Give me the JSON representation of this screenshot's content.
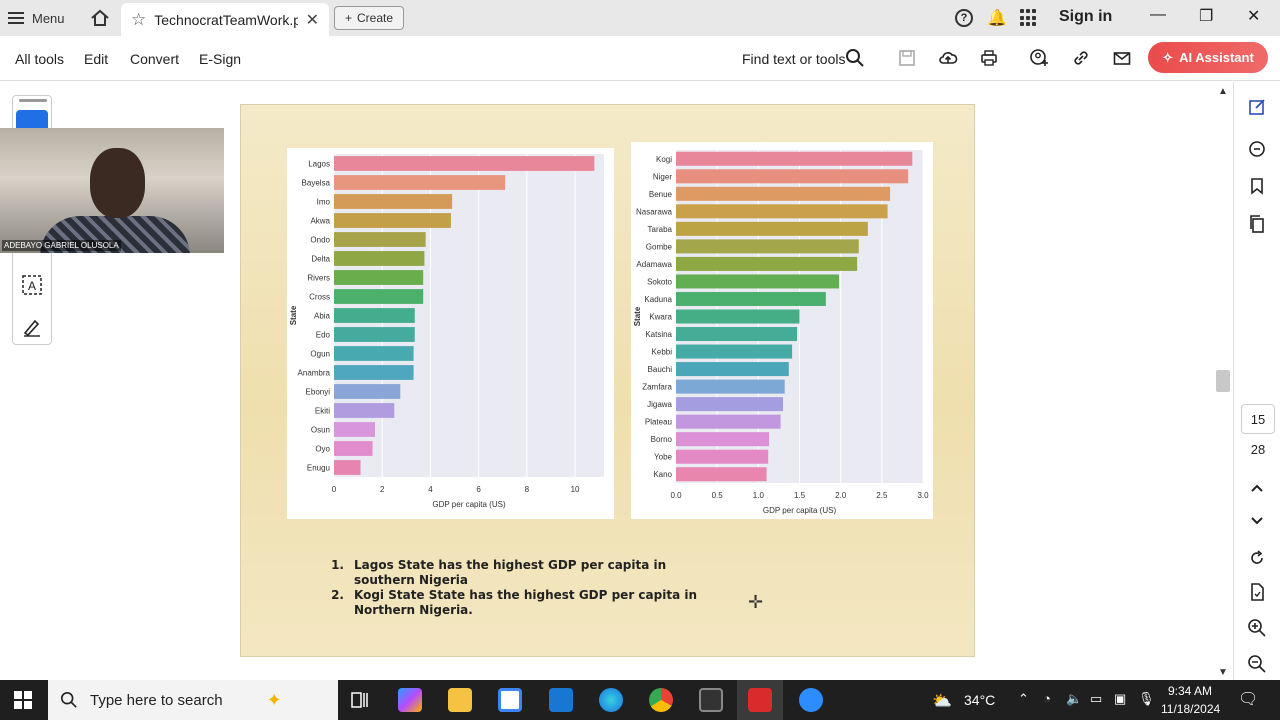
{
  "titlebar": {
    "menu_label": "Menu",
    "tab_title": "TechnocratTeamWork.p...",
    "create_label": "Create",
    "help_glyph": "?",
    "signin_label": "Sign in"
  },
  "toolbar": {
    "all_tools": "All tools",
    "edit": "Edit",
    "convert": "Convert",
    "esign": "E-Sign",
    "find_text": "Find text or tools",
    "ai_assistant": "AI Assistant"
  },
  "webcam": {
    "participant_name": "ADEBAYO GABRIEL OLUSOLA"
  },
  "document": {
    "notes": [
      {
        "num": "1.",
        "line1": "Lagos State has the highest GDP per capita in",
        "line2": "southern Nigeria"
      },
      {
        "num": "2.",
        "line1": "Kogi State State has the highest GDP per capita in",
        "line2": "Northern Nigeria."
      }
    ]
  },
  "page_nav": {
    "current": "15",
    "total": "28"
  },
  "taskbar": {
    "search_placeholder": "Type here to search",
    "weather": "34°C",
    "time": "9:34 AM",
    "date": "11/18/2024"
  },
  "colors": {
    "accent_blue": "#1f6fe5",
    "ai_red": "#ea4b4b",
    "page_bg": "#f0e2b6"
  },
  "chart_data": [
    {
      "type": "bar",
      "orientation": "horizontal",
      "categories": [
        "Lagos",
        "Bayelsa",
        "Imo",
        "Akwa",
        "Ondo",
        "Delta",
        "Rivers",
        "Cross",
        "Abia",
        "Edo",
        "Ogun",
        "Anambra",
        "Ebonyi",
        "Ekiti",
        "Osun",
        "Oyo",
        "Enugu"
      ],
      "values": [
        10.8,
        7.1,
        4.9,
        4.85,
        3.8,
        3.75,
        3.7,
        3.7,
        3.35,
        3.35,
        3.3,
        3.3,
        2.75,
        2.5,
        1.7,
        1.6,
        1.1
      ],
      "colors": [
        "#e8879a",
        "#e8967e",
        "#d49a57",
        "#c3a047",
        "#a7a34a",
        "#8fa744",
        "#6aad4d",
        "#4db06a",
        "#44ad8d",
        "#45ab9f",
        "#48aab0",
        "#4ea6bf",
        "#8aa6d8",
        "#b29ce0",
        "#d896dc",
        "#e28ccd",
        "#e884b0"
      ],
      "xlabel": "GDP per capita (US)",
      "ylabel": "State",
      "xlim": [
        0,
        11.2
      ],
      "xticks": [
        "0",
        "2",
        "4",
        "6",
        "8",
        "10"
      ],
      "xtick_values": [
        0,
        2,
        4,
        6,
        8,
        10
      ],
      "grid": true
    },
    {
      "type": "bar",
      "orientation": "horizontal",
      "categories": [
        "Kogi",
        "Niger",
        "Benue",
        "Nasarawa",
        "Taraba",
        "Gombe",
        "Adamawa",
        "Sokoto",
        "Kaduna",
        "Kwara",
        "Katsina",
        "Kebbi",
        "Bauchi",
        "Zamfara",
        "Jigawa",
        "Plateau",
        "Borno",
        "Yobe",
        "Kano"
      ],
      "values": [
        2.87,
        2.82,
        2.6,
        2.57,
        2.33,
        2.22,
        2.2,
        1.98,
        1.82,
        1.5,
        1.47,
        1.41,
        1.37,
        1.32,
        1.3,
        1.27,
        1.13,
        1.12,
        1.1
      ],
      "colors": [
        "#e8879a",
        "#e8907f",
        "#dd9a63",
        "#caa04a",
        "#bca445",
        "#a3a64a",
        "#8ea944",
        "#63ae52",
        "#4bb06e",
        "#45ae86",
        "#44ac97",
        "#46aaa7",
        "#4ba6ba",
        "#7ba8d4",
        "#a49ee0",
        "#c297df",
        "#dc90d6",
        "#e38ac4",
        "#e886ae"
      ],
      "xlabel": "GDP per capita (US)",
      "ylabel": "State",
      "xlim": [
        0,
        3.0
      ],
      "xticks": [
        "0.0",
        "0.5",
        "1.0",
        "1.5",
        "2.0",
        "2.5",
        "3.0"
      ],
      "xtick_values": [
        0,
        0.5,
        1.0,
        1.5,
        2.0,
        2.5,
        3.0
      ],
      "grid": true
    }
  ]
}
